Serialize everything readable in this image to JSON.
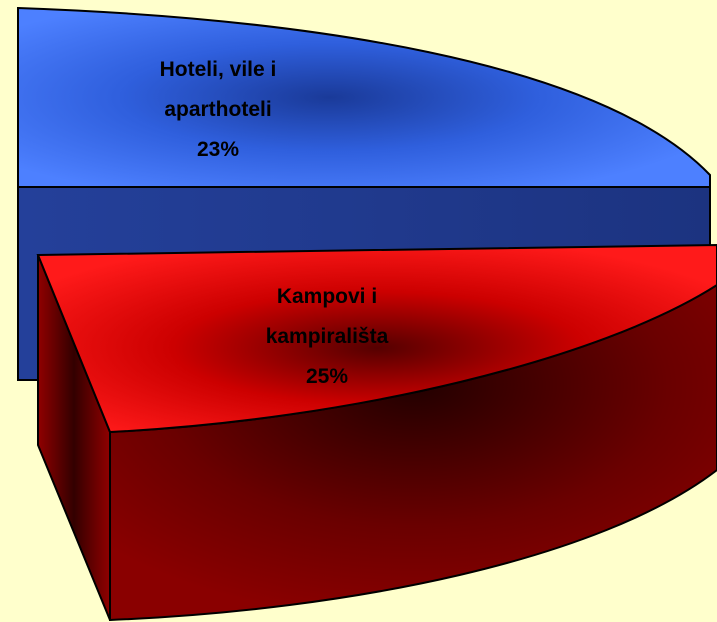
{
  "chart_data": {
    "type": "pie3d",
    "categories": [
      "Hoteli, vile i aparthoteli",
      "Kampovi i kampirališta"
    ],
    "values": [
      23,
      25
    ],
    "value_labels": [
      "23%",
      "25%"
    ],
    "colors": [
      "#3366ff",
      "#ff0000"
    ]
  }
}
